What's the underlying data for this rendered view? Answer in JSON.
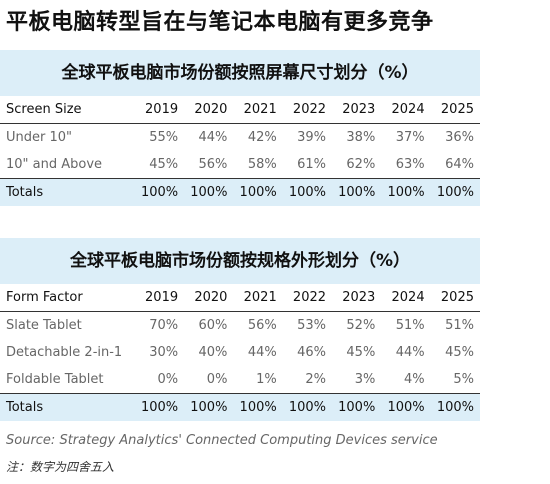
{
  "title": "平板电脑转型旨在与笔记本电脑有更多竞争",
  "table1": {
    "title": "全球平板电脑市场份额按照屏幕尺寸划分（%）",
    "header": [
      "Screen Size",
      "2019",
      "2020",
      "2021",
      "2022",
      "2023",
      "2024",
      "2025"
    ],
    "rows": [
      [
        "Under 10\"",
        "55%",
        "44%",
        "42%",
        "39%",
        "38%",
        "37%",
        "36%"
      ],
      [
        "10\" and Above",
        "45%",
        "56%",
        "58%",
        "61%",
        "62%",
        "63%",
        "64%"
      ]
    ],
    "total": [
      "Totals",
      "100%",
      "100%",
      "100%",
      "100%",
      "100%",
      "100%",
      "100%"
    ]
  },
  "table2": {
    "title": "全球平板电脑市场份额按规格外形划分（%）",
    "header": [
      "Form Factor",
      "2019",
      "2020",
      "2021",
      "2022",
      "2023",
      "2024",
      "2025"
    ],
    "rows": [
      [
        "Slate Tablet",
        "70%",
        "60%",
        "56%",
        "53%",
        "52%",
        "51%",
        "51%"
      ],
      [
        "Detachable 2-in-1",
        "30%",
        "40%",
        "44%",
        "46%",
        "45%",
        "44%",
        "45%"
      ],
      [
        "Foldable Tablet",
        "0%",
        "0%",
        "1%",
        "2%",
        "3%",
        "4%",
        "5%"
      ]
    ],
    "total": [
      "Totals",
      "100%",
      "100%",
      "100%",
      "100%",
      "100%",
      "100%",
      "100%"
    ]
  },
  "source": "Source: Strategy Analytics' Connected Computing Devices service",
  "note": "注：数字为四舍五入"
}
